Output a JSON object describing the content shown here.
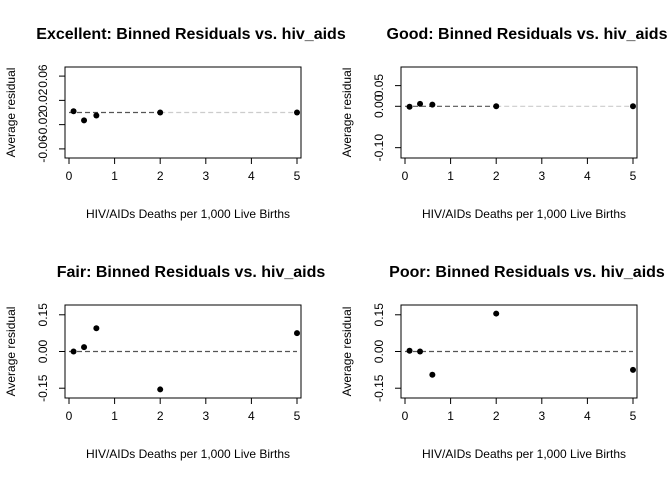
{
  "chart_data": [
    {
      "type": "scatter",
      "title": "Excellent: Binned Residuals vs. hiv_aids",
      "xlabel": "HIV/AIDs Deaths per 1,000 Live Births",
      "ylabel": "Average residual",
      "xlim": [
        0,
        5
      ],
      "xticks": [
        "0",
        "1",
        "2",
        "3",
        "4",
        "5"
      ],
      "ylim": [
        -0.075,
        0.075
      ],
      "yticks": [
        "-0.06",
        "-0.02",
        "0.02",
        "0.06"
      ],
      "ytick_values": [
        -0.06,
        -0.02,
        0.02,
        0.06
      ],
      "reference_line": {
        "y": 0,
        "style": "dashed",
        "color": "#555555",
        "faded_after_x": 2
      },
      "points": [
        {
          "x": 0.1,
          "y": 0.002
        },
        {
          "x": 0.33,
          "y": -0.013
        },
        {
          "x": 0.6,
          "y": -0.005
        },
        {
          "x": 2.0,
          "y": 0.0
        },
        {
          "x": 5.0,
          "y": 0.0
        }
      ]
    },
    {
      "type": "scatter",
      "title": "Good: Binned Residuals vs. hiv_aids",
      "xlabel": "HIV/AIDs Deaths per 1,000 Live Births",
      "ylabel": "Average residual",
      "xlim": [
        0,
        5
      ],
      "xticks": [
        "0",
        "1",
        "2",
        "3",
        "4",
        "5"
      ],
      "ylim": [
        -0.125,
        0.095
      ],
      "yticks": [
        "-0.10",
        "0.00",
        "0.05"
      ],
      "ytick_values": [
        -0.1,
        0.0,
        0.05
      ],
      "reference_line": {
        "y": 0,
        "style": "dashed",
        "color": "#555555",
        "faded_after_x": 2
      },
      "points": [
        {
          "x": 0.1,
          "y": -0.001
        },
        {
          "x": 0.33,
          "y": 0.006
        },
        {
          "x": 0.6,
          "y": 0.004
        },
        {
          "x": 2.0,
          "y": 0.0
        },
        {
          "x": 5.0,
          "y": 0.0
        }
      ]
    },
    {
      "type": "scatter",
      "title": "Fair: Binned Residuals vs. hiv_aids",
      "xlabel": "HIV/AIDs Deaths per 1,000 Live Births",
      "ylabel": "Average residual",
      "xlim": [
        0,
        5
      ],
      "xticks": [
        "0",
        "1",
        "2",
        "3",
        "4",
        "5"
      ],
      "ylim": [
        -0.19,
        0.19
      ],
      "yticks": [
        "-0.15",
        "0.00",
        "0.15"
      ],
      "ytick_values": [
        -0.15,
        0.0,
        0.15
      ],
      "reference_line": {
        "y": 0,
        "style": "dashed",
        "color": "#555555"
      },
      "points": [
        {
          "x": 0.1,
          "y": 0.0
        },
        {
          "x": 0.33,
          "y": 0.018
        },
        {
          "x": 0.6,
          "y": 0.095
        },
        {
          "x": 2.0,
          "y": -0.155
        },
        {
          "x": 5.0,
          "y": 0.075
        }
      ]
    },
    {
      "type": "scatter",
      "title": "Poor: Binned Residuals vs. hiv_aids",
      "xlabel": "HIV/AIDs Deaths per 1,000 Live Births",
      "ylabel": "Average residual",
      "xlim": [
        0,
        5
      ],
      "xticks": [
        "0",
        "1",
        "2",
        "3",
        "4",
        "5"
      ],
      "ylim": [
        -0.19,
        0.19
      ],
      "yticks": [
        "-0.15",
        "0.00",
        "0.15"
      ],
      "ytick_values": [
        -0.15,
        0.0,
        0.15
      ],
      "reference_line": {
        "y": 0,
        "style": "dashed",
        "color": "#555555"
      },
      "points": [
        {
          "x": 0.1,
          "y": 0.003
        },
        {
          "x": 0.33,
          "y": 0.0
        },
        {
          "x": 0.6,
          "y": -0.095
        },
        {
          "x": 2.0,
          "y": 0.155
        },
        {
          "x": 5.0,
          "y": -0.075
        }
      ]
    }
  ],
  "colors": {
    "points": "#000000",
    "reference_line": "#555555",
    "reference_line_faded": "#cccccc"
  }
}
